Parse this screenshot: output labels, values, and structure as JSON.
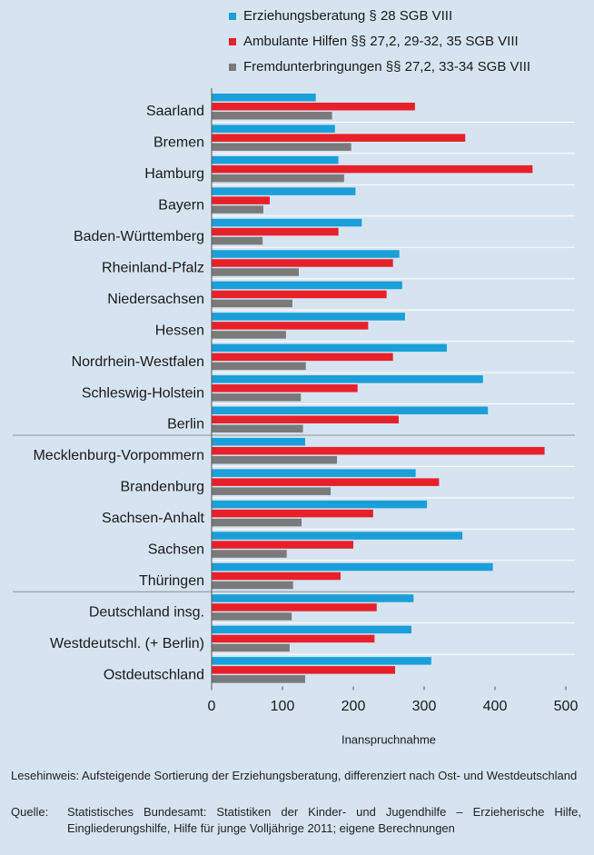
{
  "chart_data": {
    "type": "barh",
    "categories": [
      "Saarland",
      "Bremen",
      "Hamburg",
      "Bayern",
      "Baden-Württemberg",
      "Rheinland-Pfalz",
      "Niedersachsen",
      "Hessen",
      "Nordrhein-Westfalen",
      "Schleswig-Holstein",
      "Berlin",
      "Mecklenburg-Vorpommern",
      "Brandenburg",
      "Sachsen-Anhalt",
      "Sachsen",
      "Thüringen",
      "Deutschland insg.",
      "Westdeutschl. (+ Berlin)",
      "Ostdeutschland"
    ],
    "series": [
      {
        "name": "Erziehungsberatung § 28 SGB VIII",
        "color": "#1a9fd9",
        "values": [
          147,
          174,
          179,
          203,
          212,
          265,
          269,
          273,
          332,
          383,
          390,
          132,
          288,
          304,
          354,
          397,
          285,
          282,
          310
        ]
      },
      {
        "name": "Ambulante Hilfen §§ 27,2, 29-32, 35 SGB VIII",
        "color": "#e8202a",
        "values": [
          287,
          358,
          453,
          82,
          179,
          256,
          247,
          221,
          256,
          206,
          264,
          470,
          321,
          228,
          200,
          182,
          233,
          230,
          259
        ]
      },
      {
        "name": "Fremdunterbringungen §§ 27,2, 33-34 SGB VIII",
        "color": "#7a7a7a",
        "values": [
          170,
          197,
          187,
          73,
          72,
          123,
          114,
          105,
          133,
          126,
          129,
          177,
          168,
          127,
          106,
          115,
          113,
          110,
          132
        ]
      }
    ],
    "xlabel": "Inanspruchnahme",
    "xlim": [
      0,
      500
    ],
    "xticks": [
      0,
      100,
      200,
      300,
      400,
      500
    ],
    "notes": {
      "reading": "Lesehinweis: Aufsteigende Sortierung der Erziehungsberatung, differenziert nach Ost- und Westdeutschland",
      "source_label": "Quelle:",
      "source": "Statistisches Bundesamt: Statistiken der Kinder- und Jugendhilfe – Erzieherische Hilfe, Eingliederungshilfe, Hilfe für junge Volljährige 2011; eigene Berechnungen"
    }
  }
}
